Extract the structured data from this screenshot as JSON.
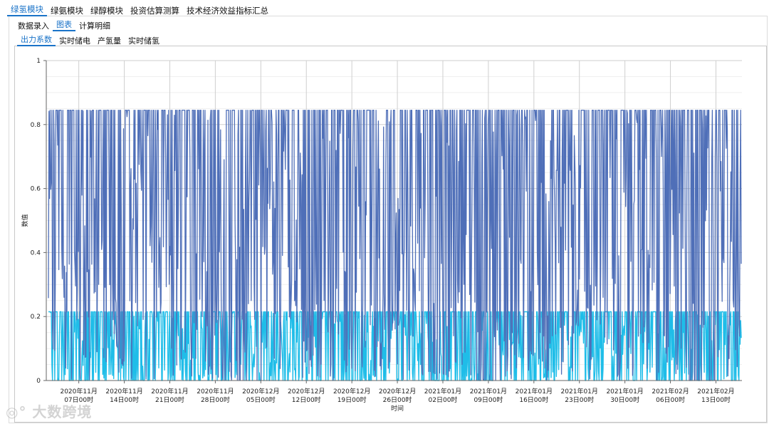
{
  "modules": [
    "绿氢模块",
    "绿氨模块",
    "绿醇模块",
    "投资估算测算",
    "技术经济效益指标汇总"
  ],
  "active_module": 0,
  "sub_tabs": [
    "数据录入",
    "图表",
    "计算明细"
  ],
  "active_sub_tab": 1,
  "chart_tabs": [
    "出力系数",
    "实时储电",
    "产氢量",
    "实时储氢"
  ],
  "active_chart_tab": 0,
  "watermark_text": "大数跨境",
  "chart_data": {
    "type": "line",
    "title": "",
    "xlabel": "时间",
    "ylabel": "数值",
    "ylim": [
      0,
      1
    ],
    "yticks": [
      0,
      0.2,
      0.4,
      0.6,
      0.8,
      1
    ],
    "xlim": [
      "2020-11-02T00:00",
      "2021-02-17T00:00"
    ],
    "xticks": [
      {
        "date": "2020-11-07",
        "label": [
          "2020年11月",
          "07日00时"
        ]
      },
      {
        "date": "2020-11-14",
        "label": [
          "2020年11月",
          "14日00时"
        ]
      },
      {
        "date": "2020-11-21",
        "label": [
          "2020年11月",
          "21日00时"
        ]
      },
      {
        "date": "2020-11-28",
        "label": [
          "2020年11月",
          "28日00时"
        ]
      },
      {
        "date": "2020-12-05",
        "label": [
          "2020年12月",
          "05日00时"
        ]
      },
      {
        "date": "2020-12-12",
        "label": [
          "2020年12月",
          "12日00时"
        ]
      },
      {
        "date": "2020-12-19",
        "label": [
          "2020年12月",
          "19日00时"
        ]
      },
      {
        "date": "2020-12-26",
        "label": [
          "2020年12月",
          "26日00时"
        ]
      },
      {
        "date": "2021-01-02",
        "label": [
          "2021年01月",
          "02日00时"
        ]
      },
      {
        "date": "2021-01-09",
        "label": [
          "2021年01月",
          "09日00时"
        ]
      },
      {
        "date": "2021-01-16",
        "label": [
          "2021年01月",
          "16日00时"
        ]
      },
      {
        "date": "2021-01-23",
        "label": [
          "2021年01月",
          "23日00时"
        ]
      },
      {
        "date": "2021-01-30",
        "label": [
          "2021年01月",
          "30日00时"
        ]
      },
      {
        "date": "2021-02-06",
        "label": [
          "2021年02月",
          "06日00时"
        ]
      },
      {
        "date": "2021-02-13",
        "label": [
          "2021年02月",
          "13日00时"
        ]
      }
    ],
    "grid": true,
    "series": [
      {
        "color": "#4f6fb8",
        "sampling": "approximate shape: hourly values oscillating between ~0 and the 0.845 ceiling",
        "ceiling": 0.845,
        "values": [
          0.845,
          0.845,
          0.3,
          0.02,
          0.6,
          0.845,
          0.1,
          0.0,
          0.845,
          0.5,
          0.845,
          0.2,
          0.845,
          0.845,
          0.05,
          0.7,
          0.0,
          0.845,
          0.4,
          0.845,
          0.845,
          0.1,
          0.845,
          0.3,
          0.0,
          0.845
        ]
      },
      {
        "color": "#1fbde8",
        "sampling": "approximate shape: values oscillating between 0 and ~0.215",
        "ceiling": 0.215,
        "values": [
          0.215,
          0.0,
          0.18,
          0.0,
          0.215,
          0.05,
          0.0,
          0.215,
          0.215,
          0.0,
          0.1,
          0.215,
          0.0,
          0.215,
          0.0,
          0.15,
          0.215,
          0.0,
          0.215,
          0.215,
          0.0,
          0.2,
          0.0,
          0.215,
          0.0,
          0.215
        ]
      }
    ]
  }
}
